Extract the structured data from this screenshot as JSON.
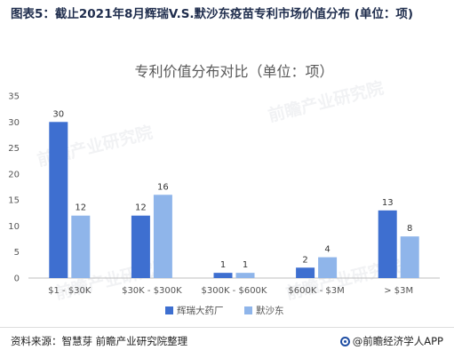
{
  "figure": {
    "title": "图表5：截止2021年8月辉瑞V.S.默沙东疫苗专利市场价值分布 (单位：项)"
  },
  "footer": {
    "source": "资料来源：智慧芽 前瞻产业研究院整理",
    "brand": "@前瞻经济学人APP"
  },
  "watermark": {
    "text": "前瞻产业研究院"
  },
  "colors": {
    "pfizer": "#3e6fd0",
    "msd": "#8fb5ea",
    "axis": "#bfbfbf",
    "text": "#555555",
    "title": "#595959"
  },
  "chart_data": {
    "type": "bar",
    "title": "专利价值分布对比（单位：项）",
    "categories": [
      "$1 - $30K",
      "$30K - $300K",
      "$300K - $600K",
      "$600K - $3M",
      "> $3M"
    ],
    "series": [
      {
        "name": "辉瑞大药厂",
        "values": [
          30,
          12,
          1,
          2,
          13
        ]
      },
      {
        "name": "默沙东",
        "values": [
          12,
          16,
          1,
          4,
          8
        ]
      }
    ],
    "ylim": [
      0,
      35
    ],
    "yticks": [
      0,
      5,
      10,
      15,
      20,
      25,
      30,
      35
    ],
    "grid": false,
    "legend": "bottom-center"
  }
}
